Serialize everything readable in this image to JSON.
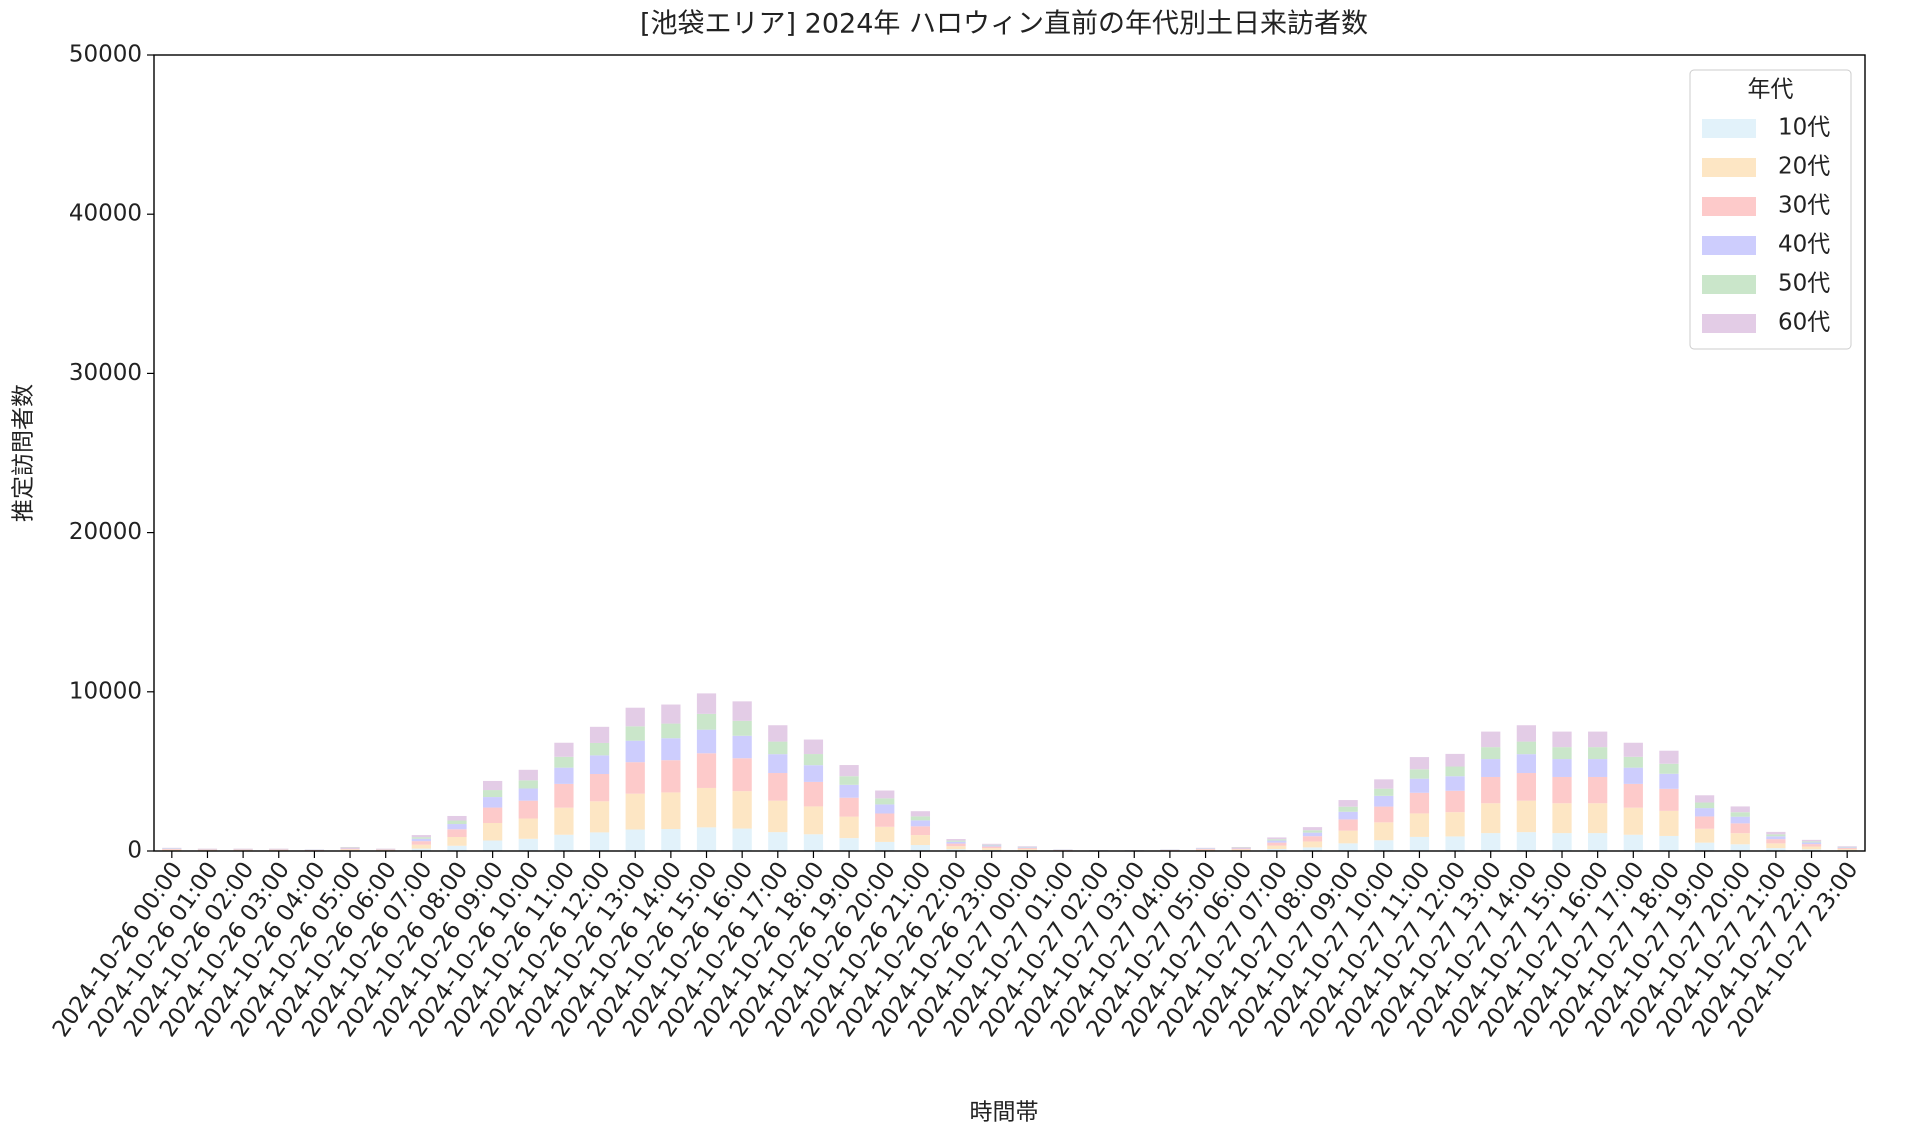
{
  "chart_data": {
    "type": "stacked_bar",
    "title": "[池袋エリア] 2024年 ハロウィン直前の年代別土日来訪者数",
    "x_label": "時間帯",
    "y_label": "推定訪問者数",
    "categories": [
      "2024-10-26 00:00",
      "2024-10-26 01:00",
      "2024-10-26 02:00",
      "2024-10-26 03:00",
      "2024-10-26 04:00",
      "2024-10-26 05:00",
      "2024-10-26 06:00",
      "2024-10-26 07:00",
      "2024-10-26 08:00",
      "2024-10-26 09:00",
      "2024-10-26 10:00",
      "2024-10-26 11:00",
      "2024-10-26 12:00",
      "2024-10-26 13:00",
      "2024-10-26 14:00",
      "2024-10-26 15:00",
      "2024-10-26 16:00",
      "2024-10-26 17:00",
      "2024-10-26 18:00",
      "2024-10-26 19:00",
      "2024-10-26 20:00",
      "2024-10-26 21:00",
      "2024-10-26 22:00",
      "2024-10-26 23:00",
      "2024-10-27 00:00",
      "2024-10-27 01:00",
      "2024-10-27 02:00",
      "2024-10-27 03:00",
      "2024-10-27 04:00",
      "2024-10-27 05:00",
      "2024-10-27 06:00",
      "2024-10-27 07:00",
      "2024-10-27 08:00",
      "2024-10-27 09:00",
      "2024-10-27 10:00",
      "2024-10-27 11:00",
      "2024-10-27 12:00",
      "2024-10-27 13:00",
      "2024-10-27 14:00",
      "2024-10-27 15:00",
      "2024-10-27 16:00",
      "2024-10-27 17:00",
      "2024-10-27 18:00",
      "2024-10-27 19:00",
      "2024-10-27 20:00",
      "2024-10-27 21:00",
      "2024-10-27 22:00",
      "2024-10-27 23:00"
    ],
    "series": [
      {
        "name": "10代",
        "color": "#e2f2fa",
        "values": [
          30,
          23,
          23,
          23,
          15,
          38,
          23,
          150,
          330,
          660,
          765,
          1020,
          1170,
          1350,
          1380,
          1485,
          1410,
          1185,
          1050,
          810,
          570,
          375,
          113,
          68,
          45,
          15,
          8,
          8,
          15,
          30,
          38,
          128,
          225,
          480,
          675,
          885,
          915,
          1125,
          1185,
          1125,
          1125,
          1020,
          945,
          525,
          420,
          180,
          105,
          45
        ]
      },
      {
        "name": "20代",
        "color": "#fde6c4",
        "values": [
          50,
          38,
          38,
          38,
          25,
          63,
          38,
          250,
          550,
          1100,
          1275,
          1700,
          1950,
          2250,
          2300,
          2475,
          2350,
          1975,
          1750,
          1350,
          950,
          625,
          188,
          113,
          75,
          25,
          13,
          13,
          25,
          50,
          63,
          213,
          375,
          800,
          1125,
          1475,
          1525,
          1875,
          1975,
          1875,
          1875,
          1700,
          1575,
          875,
          700,
          300,
          175,
          75
        ]
      },
      {
        "name": "30代",
        "color": "#fdcaca",
        "values": [
          44,
          33,
          33,
          33,
          22,
          55,
          33,
          220,
          484,
          968,
          1122,
          1496,
          1716,
          1980,
          2024,
          2178,
          2068,
          1738,
          1540,
          1188,
          836,
          550,
          165,
          99,
          66,
          22,
          11,
          11,
          22,
          44,
          55,
          187,
          330,
          704,
          990,
          1298,
          1342,
          1650,
          1738,
          1650,
          1650,
          1496,
          1386,
          770,
          616,
          264,
          154,
          66
        ]
      },
      {
        "name": "40代",
        "color": "#cdcdfd",
        "values": [
          30,
          23,
          23,
          23,
          15,
          38,
          23,
          150,
          330,
          660,
          765,
          1020,
          1170,
          1350,
          1380,
          1485,
          1410,
          1185,
          1050,
          810,
          570,
          375,
          113,
          68,
          45,
          15,
          8,
          8,
          15,
          30,
          38,
          128,
          225,
          480,
          675,
          885,
          915,
          1125,
          1185,
          1125,
          1125,
          1020,
          945,
          525,
          420,
          180,
          105,
          45
        ]
      },
      {
        "name": "50代",
        "color": "#cae6ca",
        "values": [
          20,
          15,
          15,
          15,
          10,
          25,
          15,
          100,
          220,
          440,
          510,
          680,
          780,
          900,
          920,
          990,
          940,
          790,
          700,
          540,
          380,
          250,
          75,
          45,
          30,
          10,
          5,
          5,
          10,
          20,
          25,
          85,
          150,
          320,
          450,
          590,
          610,
          750,
          790,
          750,
          750,
          680,
          630,
          350,
          280,
          120,
          70,
          30
        ]
      },
      {
        "name": "60代",
        "color": "#e3cce6",
        "values": [
          26,
          20,
          20,
          20,
          13,
          33,
          20,
          130,
          286,
          572,
          663,
          884,
          1014,
          1170,
          1196,
          1287,
          1222,
          1027,
          910,
          702,
          494,
          325,
          98,
          59,
          39,
          13,
          7,
          7,
          13,
          26,
          33,
          111,
          195,
          416,
          585,
          767,
          793,
          975,
          1027,
          975,
          975,
          884,
          819,
          455,
          364,
          156,
          91,
          39
        ]
      }
    ],
    "legend_title": "年代",
    "legend": "upper right",
    "ylim": [
      0,
      50000
    ],
    "yticks": [
      0,
      10000,
      20000,
      30000,
      40000,
      50000
    ]
  }
}
